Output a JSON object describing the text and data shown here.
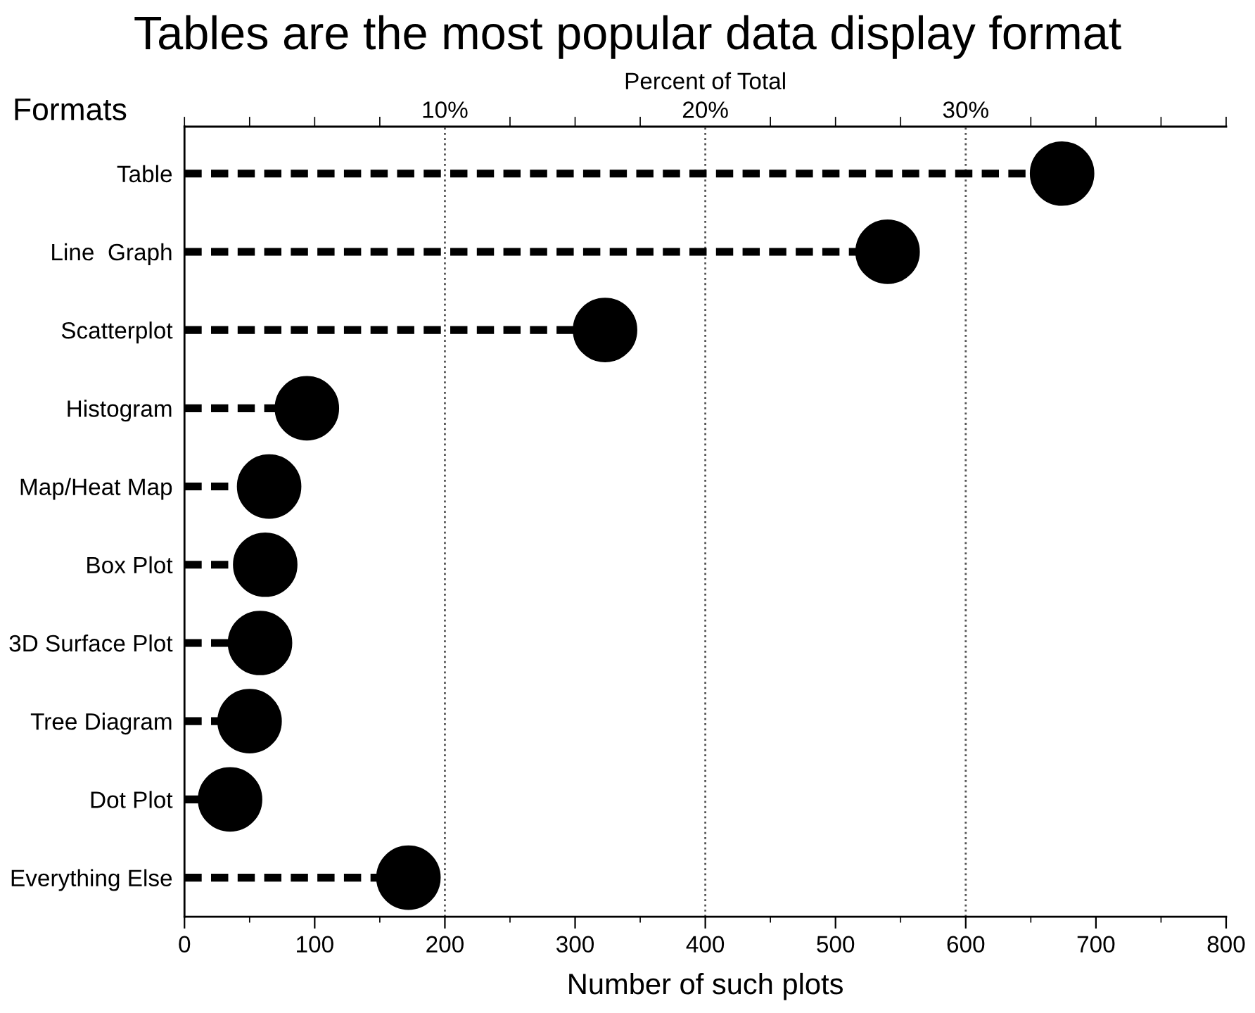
{
  "chart_data": {
    "type": "lollipop",
    "orientation": "horizontal",
    "title": "Tables are the most popular data display format",
    "xlabel": "Number of such plots",
    "ylabel": "Formats",
    "x2label": "Percent of Total",
    "categories": [
      "Table",
      "Line  Graph",
      "Scatterplot",
      "Histogram",
      "Map/Heat Map",
      "Box Plot",
      "3D Surface Plot",
      "Tree Diagram",
      "Dot Plot",
      "Everything Else"
    ],
    "values": [
      674,
      540,
      323,
      94,
      65,
      62,
      58,
      50,
      35,
      172
    ],
    "color": "#000000",
    "marker": "circle",
    "line_style": "dashed",
    "xlim": [
      0,
      800
    ],
    "xticks": [
      0,
      {
        "value": 50,
        "label": null
      },
      100,
      {
        "value": 150,
        "label": null
      },
      200,
      {
        "value": 250,
        "label": null
      },
      300,
      {
        "value": 350,
        "label": null
      },
      400,
      {
        "value": 450,
        "label": null
      },
      500,
      {
        "value": 550,
        "label": null
      },
      600,
      {
        "value": 650,
        "label": null
      },
      700,
      {
        "value": 750,
        "label": null
      },
      800
    ],
    "x2lim": [
      0,
      40
    ],
    "x2ticks": [
      {
        "value": 0,
        "label": null
      },
      {
        "value": 2.5,
        "label": null
      },
      {
        "value": 5,
        "label": null
      },
      {
        "value": 7.5,
        "label": null
      },
      {
        "value": 10,
        "label": "10%"
      },
      {
        "value": 12.5,
        "label": null
      },
      {
        "value": 15,
        "label": null
      },
      {
        "value": 17.5,
        "label": null
      },
      {
        "value": 20,
        "label": "20%"
      },
      {
        "value": 22.5,
        "label": null
      },
      {
        "value": 25,
        "label": null
      },
      {
        "value": 27.5,
        "label": null
      },
      {
        "value": 30,
        "label": "30%"
      },
      {
        "value": 32.5,
        "label": null
      },
      {
        "value": 35,
        "label": null
      },
      {
        "value": 37.5,
        "label": null
      },
      {
        "value": 40,
        "label": null
      }
    ],
    "ref_lines": [
      {
        "axis": "x",
        "value": 200,
        "color": "#555555",
        "line_style": "dotted"
      },
      {
        "axis": "x",
        "value": 400,
        "color": "#555555",
        "line_style": "dotted"
      },
      {
        "axis": "x",
        "value": 600,
        "color": "#555555",
        "line_style": "dotted"
      }
    ]
  }
}
